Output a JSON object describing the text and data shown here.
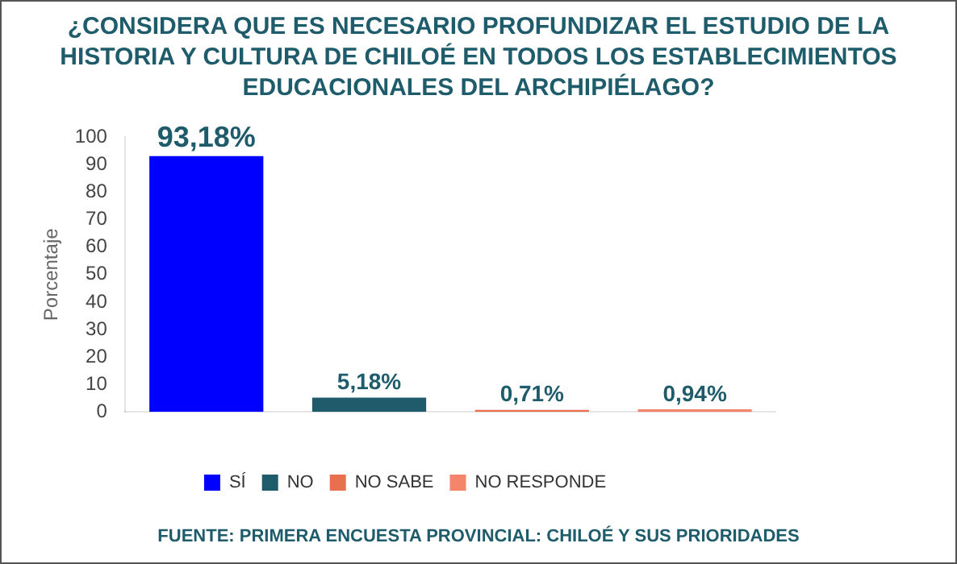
{
  "chart_data": {
    "type": "bar",
    "title": "¿CONSIDERA QUE ES NECESARIO PROFUNDIZAR EL ESTUDIO DE LA HISTORIA Y CULTURA DE CHILOÉ EN TODOS LOS ESTABLECIMIENTOS EDUCACIONALES DEL ARCHIPIÉLAGO?",
    "ylabel": "Porcentaje",
    "categories": [
      null,
      null,
      null,
      null
    ],
    "series": [
      {
        "name": "SÍ",
        "color": "#0000ff",
        "values": [
          93.18,
          null,
          null,
          null
        ],
        "value_labels": [
          "93,18%",
          null,
          null,
          null
        ]
      },
      {
        "name": "NO",
        "color": "#1f5c6b",
        "values": [
          null,
          5.18,
          null,
          null
        ],
        "value_labels": [
          null,
          "5,18%",
          null,
          null
        ]
      },
      {
        "name": "NO SABE",
        "color": "#e8704f",
        "values": [
          null,
          null,
          0.71,
          null
        ],
        "value_labels": [
          null,
          null,
          "0,71%",
          null
        ]
      },
      {
        "name": "NO RESPONDE",
        "color": "#f4846a",
        "values": [
          null,
          null,
          null,
          0.94
        ],
        "value_labels": [
          null,
          null,
          null,
          "0,94%"
        ]
      }
    ],
    "ylim": [
      0,
      100
    ],
    "yticks": [
      0,
      10,
      20,
      30,
      40,
      50,
      60,
      70,
      80,
      90,
      100
    ],
    "grid": false,
    "legend": "bottom",
    "annotations": [
      "FUENTE: PRIMERA ENCUESTA PROVINCIAL: CHILOÉ Y SUS PRIORIDADES"
    ]
  }
}
